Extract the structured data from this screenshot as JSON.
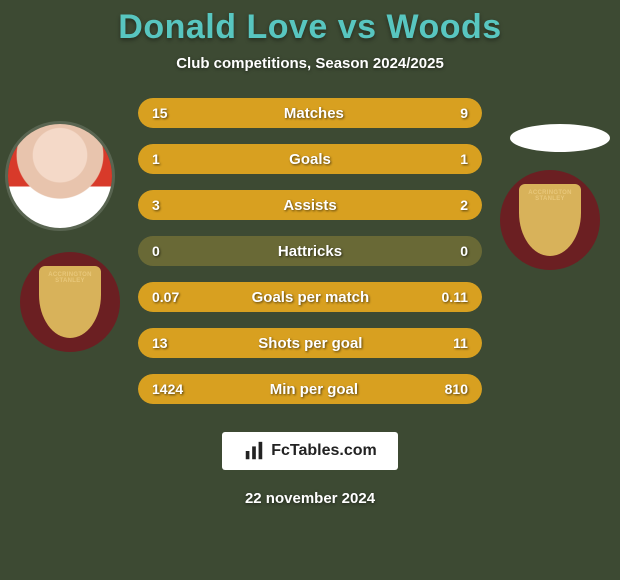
{
  "background_color": "#3d4a33",
  "title": {
    "text": "Donald Love vs Woods",
    "color": "#58c6c0",
    "fontsize": 34
  },
  "subtitle": "Club competitions, Season 2024/2025",
  "stats": {
    "bar_track_color": "#696936",
    "left_bar_color": "#d8a020",
    "right_bar_color": "#d8a020",
    "rows": [
      {
        "label": "Matches",
        "left": "15",
        "right": "9",
        "left_pct": 62,
        "right_pct": 38
      },
      {
        "label": "Goals",
        "left": "1",
        "right": "1",
        "left_pct": 50,
        "right_pct": 50
      },
      {
        "label": "Assists",
        "left": "3",
        "right": "2",
        "left_pct": 60,
        "right_pct": 40
      },
      {
        "label": "Hattricks",
        "left": "0",
        "right": "0",
        "left_pct": 0,
        "right_pct": 0
      },
      {
        "label": "Goals per match",
        "left": "0.07",
        "right": "0.11",
        "left_pct": 39,
        "right_pct": 61
      },
      {
        "label": "Shots per goal",
        "left": "13",
        "right": "11",
        "left_pct": 54,
        "right_pct": 46
      },
      {
        "label": "Min per goal",
        "left": "1424",
        "right": "810",
        "left_pct": 64,
        "right_pct": 36
      }
    ]
  },
  "crest": {
    "ring_color": "#6b1f22",
    "shield_bg": "#d8b25a",
    "text_color": "#e8c77a",
    "top_text": "ACCRINGTON STANLEY"
  },
  "brand": "FcTables.com",
  "date": "22 november 2024"
}
